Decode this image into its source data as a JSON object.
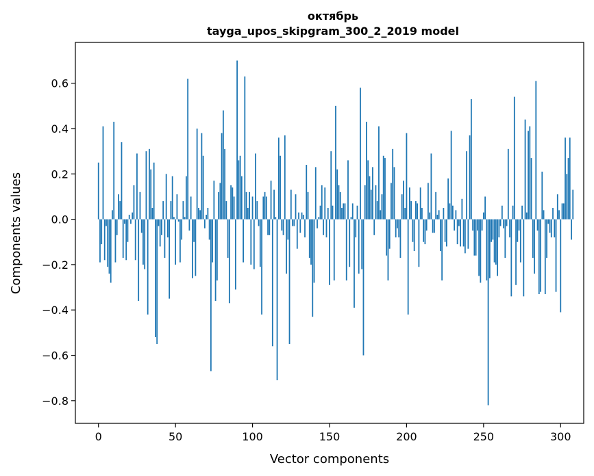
{
  "chart_data": {
    "type": "bar",
    "title": "октябрь",
    "subtitle": "tayga_upos_skipgram_300_2_2019 model",
    "xlabel": "Vector components",
    "ylabel": "Components values",
    "xlim": [
      -15,
      315
    ],
    "ylim": [
      -0.9,
      0.78
    ],
    "x_ticks": [
      0,
      50,
      100,
      150,
      200,
      250,
      300
    ],
    "x_tick_labels": [
      "0",
      "50",
      "100",
      "150",
      "200",
      "250",
      "300"
    ],
    "y_ticks": [
      -0.8,
      -0.6,
      -0.4,
      -0.2,
      0.0,
      0.2,
      0.4,
      0.6
    ],
    "y_tick_labels": [
      "−0.8",
      "−0.6",
      "−0.4",
      "−0.2",
      "0.0",
      "0.2",
      "0.4",
      "0.6"
    ],
    "bar_color": "#1f77b4",
    "grid": false,
    "legend": "none",
    "values": [
      0.25,
      -0.19,
      -0.11,
      0.41,
      -0.18,
      -0.03,
      -0.21,
      -0.24,
      -0.28,
      0.04,
      0.43,
      -0.19,
      -0.07,
      0.11,
      0.08,
      0.34,
      -0.17,
      -0.02,
      -0.18,
      -0.1,
      0.02,
      -0.02,
      0.03,
      0.15,
      -0.18,
      0.29,
      -0.36,
      0.12,
      -0.06,
      -0.2,
      -0.22,
      0.3,
      -0.42,
      0.31,
      0.22,
      0.05,
      0.25,
      -0.52,
      -0.55,
      -0.03,
      -0.12,
      -0.07,
      0.08,
      -0.17,
      0.2,
      -0.08,
      -0.35,
      0.08,
      0.19,
      0.01,
      -0.2,
      0.11,
      -0.01,
      -0.19,
      -0.09,
      0.08,
      0.01,
      0.19,
      0.62,
      -0.05,
      0.1,
      -0.26,
      -0.1,
      -0.25,
      0.4,
      0.05,
      0.04,
      0.38,
      0.28,
      -0.04,
      0.02,
      0.05,
      -0.09,
      -0.67,
      -0.19,
      0.17,
      -0.36,
      -0.27,
      0.12,
      0.16,
      0.38,
      0.48,
      0.31,
      0.08,
      -0.17,
      -0.37,
      0.15,
      0.14,
      0.1,
      -0.31,
      0.7,
      0.26,
      0.28,
      0.19,
      -0.19,
      0.63,
      0.12,
      0.05,
      0.12,
      -0.2,
      0.1,
      -0.22,
      0.29,
      0.08,
      -0.03,
      -0.21,
      -0.42,
      0.1,
      0.12,
      0.1,
      -0.07,
      -0.07,
      0.17,
      -0.56,
      0.13,
      0.01,
      -0.71,
      0.36,
      0.28,
      -0.05,
      -0.07,
      0.37,
      -0.24,
      -0.09,
      -0.55,
      0.13,
      -0.03,
      -0.03,
      0.11,
      -0.13,
      0.03,
      -0.06,
      0.03,
      0.02,
      -0.08,
      0.24,
      0.12,
      -0.17,
      -0.2,
      -0.43,
      -0.28,
      0.23,
      -0.04,
      0.01,
      0.06,
      0.15,
      -0.07,
      0.14,
      -0.08,
      0.05,
      -0.29,
      0.3,
      0.06,
      -0.27,
      0.5,
      0.22,
      0.15,
      0.12,
      0.05,
      0.07,
      0.07,
      -0.27,
      0.26,
      -0.21,
      0.01,
      0.07,
      -0.39,
      -0.08,
      0.06,
      -0.24,
      0.58,
      -0.22,
      -0.6,
      0.15,
      0.43,
      0.26,
      0.19,
      0.13,
      0.23,
      -0.07,
      0.15,
      0.08,
      0.41,
      0.04,
      0.11,
      0.28,
      0.27,
      -0.16,
      -0.27,
      -0.13,
      0.16,
      0.31,
      0.23,
      -0.08,
      -0.04,
      -0.08,
      -0.17,
      0.11,
      0.17,
      0.05,
      0.38,
      -0.42,
      0.14,
      0.08,
      -0.1,
      -0.14,
      0.08,
      0.07,
      -0.21,
      0.14,
      0.05,
      -0.1,
      -0.11,
      -0.05,
      0.16,
      0.03,
      0.29,
      -0.06,
      -0.06,
      0.12,
      0.02,
      0.04,
      -0.14,
      -0.27,
      0.05,
      -0.1,
      -0.12,
      0.18,
      0.07,
      0.39,
      0.06,
      -0.05,
      0.04,
      -0.11,
      -0.03,
      -0.12,
      0.09,
      -0.12,
      -0.15,
      0.3,
      -0.13,
      0.37,
      0.53,
      -0.05,
      -0.16,
      -0.16,
      -0.05,
      -0.25,
      -0.28,
      -0.05,
      0.03,
      0.1,
      -0.27,
      -0.82,
      -0.26,
      -0.1,
      -0.09,
      -0.19,
      -0.2,
      -0.25,
      -0.08,
      -0.03,
      0.06,
      -0.04,
      -0.17,
      -0.03,
      0.31,
      -0.08,
      -0.34,
      0.06,
      0.54,
      -0.29,
      -0.1,
      -0.05,
      -0.19,
      0.06,
      -0.34,
      0.44,
      0.03,
      0.39,
      0.41,
      0.27,
      -0.17,
      -0.24,
      0.61,
      -0.05,
      -0.33,
      -0.32,
      0.21,
      0.04,
      -0.33,
      -0.17,
      -0.02,
      -0.06,
      -0.08,
      0.05,
      -0.08,
      -0.32,
      0.11,
      0.04,
      -0.41,
      0.07,
      0.07,
      0.36,
      0.2,
      0.27,
      0.36,
      -0.09,
      0.13
    ]
  }
}
